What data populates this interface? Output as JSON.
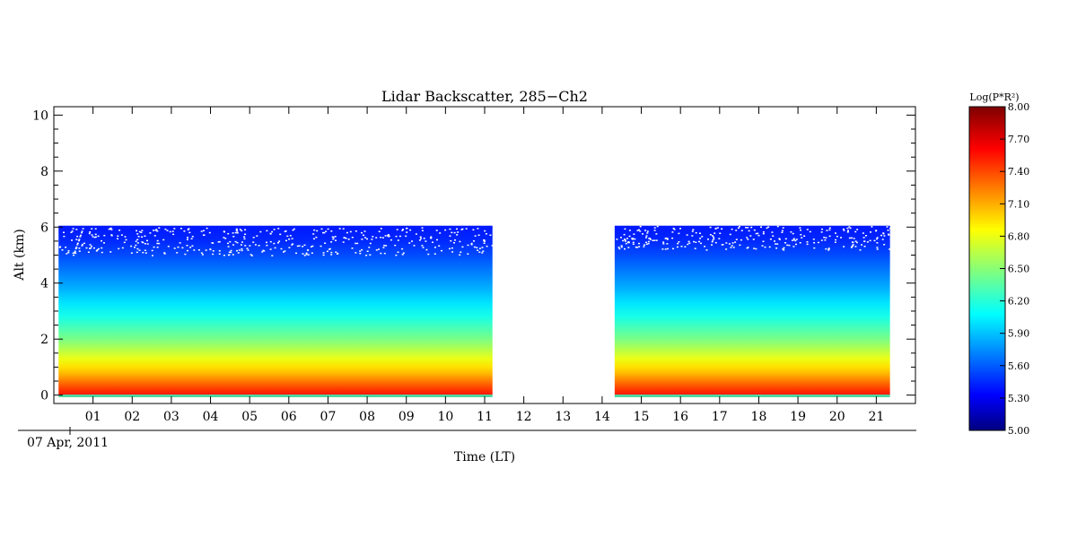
{
  "chart_data": {
    "type": "heatmap",
    "title": "Lidar Backscatter, 285−Ch2",
    "xlabel": "Time (LT)",
    "ylabel": "Alt (km)",
    "date_label": "07 Apr, 2011",
    "x_range_hours": [
      0.0,
      22.0
    ],
    "y_range_km": [
      -0.3,
      10.3
    ],
    "x_ticks": [
      {
        "value": 1,
        "label": "01"
      },
      {
        "value": 2,
        "label": "02"
      },
      {
        "value": 3,
        "label": "03"
      },
      {
        "value": 4,
        "label": "04"
      },
      {
        "value": 5,
        "label": "05"
      },
      {
        "value": 6,
        "label": "06"
      },
      {
        "value": 7,
        "label": "07"
      },
      {
        "value": 8,
        "label": "08"
      },
      {
        "value": 9,
        "label": "09"
      },
      {
        "value": 10,
        "label": "10"
      },
      {
        "value": 11,
        "label": "11"
      },
      {
        "value": 12,
        "label": "12"
      },
      {
        "value": 13,
        "label": "13"
      },
      {
        "value": 14,
        "label": "14"
      },
      {
        "value": 15,
        "label": "15"
      },
      {
        "value": 16,
        "label": "16"
      },
      {
        "value": 17,
        "label": "17"
      },
      {
        "value": 18,
        "label": "18"
      },
      {
        "value": 19,
        "label": "19"
      },
      {
        "value": 20,
        "label": "20"
      },
      {
        "value": 21,
        "label": "21"
      }
    ],
    "y_ticks": [
      {
        "value": 0,
        "label": "0"
      },
      {
        "value": 2,
        "label": "2"
      },
      {
        "value": 4,
        "label": "4"
      },
      {
        "value": 6,
        "label": "6"
      },
      {
        "value": 8,
        "label": "8"
      },
      {
        "value": 10,
        "label": "10"
      }
    ],
    "data_segments": [
      {
        "t_start": 0.12,
        "t_end": 11.2,
        "alt_top_km": 6.05
      },
      {
        "t_start": 14.32,
        "t_end": 21.35,
        "alt_top_km": 6.05
      }
    ],
    "profile_description": {
      "altitudes_km": [
        0.0,
        0.2,
        0.5,
        0.8,
        1.0,
        1.3,
        1.6,
        2.0,
        2.4,
        2.8,
        3.3,
        3.8,
        4.4,
        5.0,
        5.5,
        6.0
      ],
      "log_values": [
        7.55,
        7.45,
        7.25,
        7.05,
        6.95,
        6.8,
        6.65,
        6.45,
        6.3,
        6.15,
        6.0,
        5.85,
        5.7,
        5.55,
        5.45,
        5.4
      ]
    },
    "colorbar": {
      "label": "Log(P*R²)",
      "min": 5.0,
      "max": 8.0,
      "ticks": [
        "5.00",
        "5.30",
        "5.60",
        "5.90",
        "6.20",
        "6.50",
        "6.80",
        "7.10",
        "7.40",
        "7.70",
        "8.00"
      ],
      "colormap": "jet"
    }
  }
}
